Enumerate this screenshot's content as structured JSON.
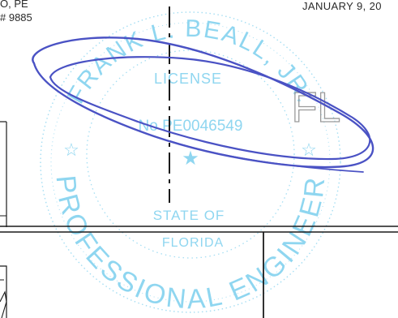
{
  "header": {
    "engineer_name_fragment": "O, PE",
    "license_fragment": "# 9885",
    "date_fragment": "JANUARY 9, 20"
  },
  "seal": {
    "name_arc": "FRANK L. BEALL, JR.",
    "license_label": "LICENSE",
    "license_number": "No PE0046549",
    "state_label": "STATE OF",
    "state_name": "FLORIDA",
    "profession_arc": "PROFESSIONAL ENGINEER",
    "seal_color": "#8fd6f0",
    "initials": "FL"
  },
  "signature": {
    "ink_color": "#4a52c4"
  },
  "linework_color": "#1a1a1a"
}
